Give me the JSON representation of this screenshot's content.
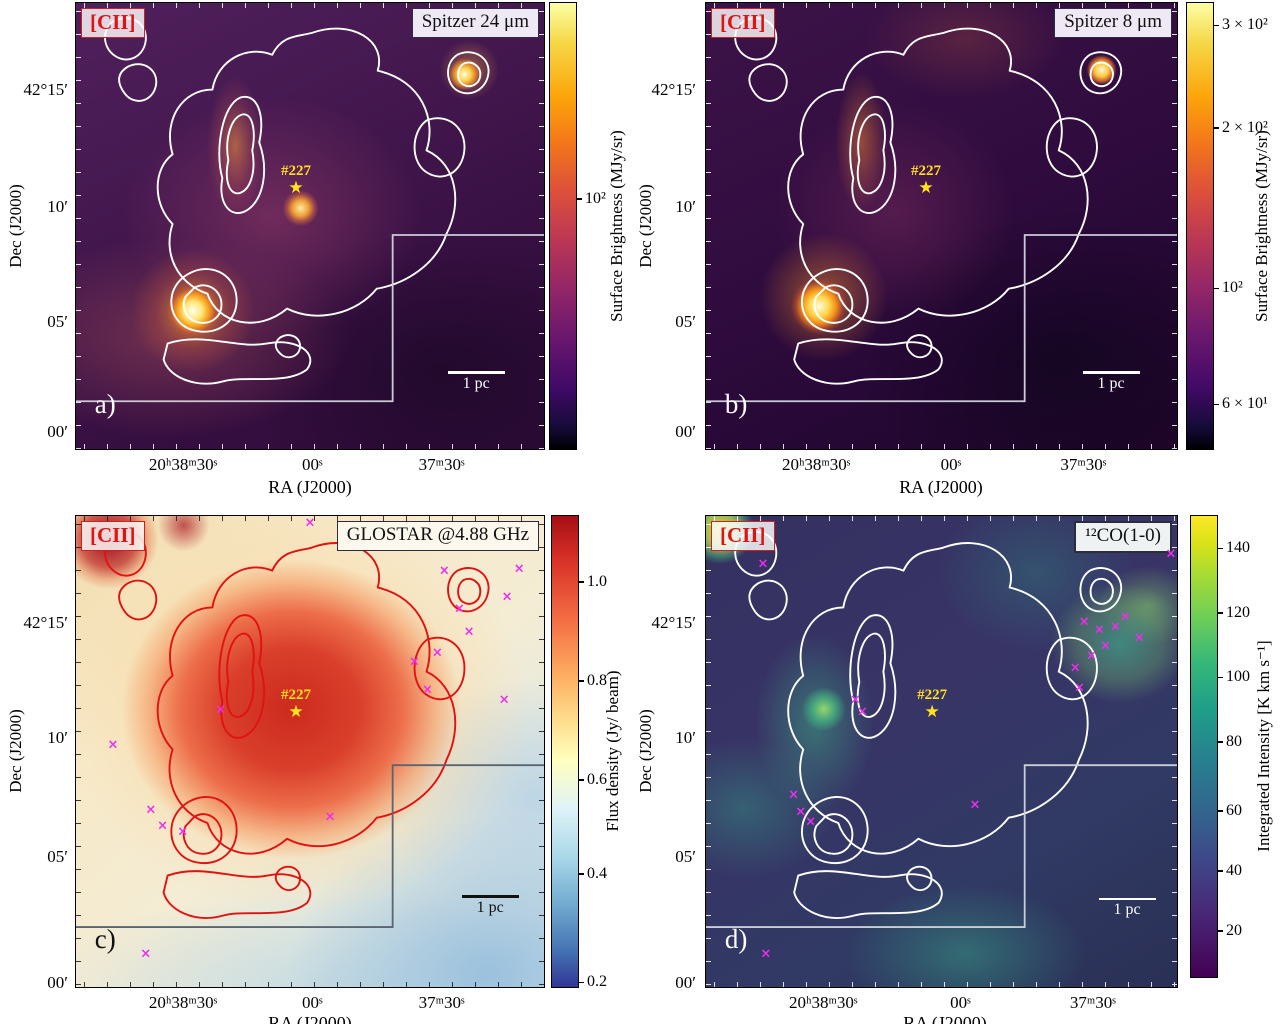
{
  "figure": {
    "shared": {
      "xlabel": "RA (J2000)",
      "ylabel": "Dec (J2000)",
      "x_ticks": [
        "20ʰ38ᵐ30ˢ",
        "00ˢ",
        "37ᵐ30ˢ"
      ],
      "y_ticks": [
        "42°15′",
        "10′",
        "05′",
        "00′"
      ],
      "region_label": "[CII]",
      "source_label": "#227",
      "scalebar_label": "1 pc"
    },
    "colors": {
      "contour_white": "#ffffff",
      "contour_red": "#e01212",
      "marker_magenta": "#ee2dee",
      "star_yellow": "#ffe31e",
      "cii_red": "#dd1414"
    },
    "panels": [
      {
        "letter": "a)",
        "title": "Spitzer 24 μm",
        "colormap": "inferno",
        "colorbar": {
          "label": "Surface Brightness (MJy/sr)",
          "ticks": [
            {
              "label": "10²",
              "pos": 44
            }
          ]
        }
      },
      {
        "letter": "b)",
        "title": "Spitzer 8 μm",
        "colormap": "inferno",
        "colorbar": {
          "label": "Surface Brightness (MJy/sr)",
          "ticks": [
            {
              "label": "3 × 10²",
              "pos": 5
            },
            {
              "label": "2 × 10²",
              "pos": 28
            },
            {
              "label": "10²",
              "pos": 64
            },
            {
              "label": "6 × 10¹",
              "pos": 90
            }
          ]
        }
      },
      {
        "letter": "c)",
        "title": "GLOSTAR @4.88 GHz",
        "colormap": "RdYlBu_r",
        "colorbar": {
          "label": "Flux density (Jy/ beam)",
          "ticks": [
            {
              "label": "1.0",
              "pos": 14
            },
            {
              "label": "0.8",
              "pos": 35
            },
            {
              "label": "0.6",
              "pos": 56
            },
            {
              "label": "0.4",
              "pos": 76
            },
            {
              "label": "0.2",
              "pos": 99
            }
          ]
        },
        "markers": [
          [
            78.7,
            11.6
          ],
          [
            94.7,
            11.2
          ],
          [
            92.1,
            17.1
          ],
          [
            81.9,
            19.7
          ],
          [
            84.0,
            24.7
          ],
          [
            77.2,
            29.0
          ],
          [
            72.3,
            31.1
          ],
          [
            75.1,
            37.0
          ],
          [
            91.5,
            39.1
          ],
          [
            50.0,
            1.5
          ],
          [
            30.9,
            41.2
          ],
          [
            7.9,
            48.6
          ],
          [
            16.0,
            62.4
          ],
          [
            18.5,
            65.8
          ],
          [
            22.8,
            67.0
          ],
          [
            54.3,
            64.0
          ],
          [
            14.9,
            93.0
          ]
        ]
      },
      {
        "letter": "d)",
        "title": "¹²CO(1-0)",
        "colormap": "viridis",
        "colorbar": {
          "label": "Integrated Intensity [K km s⁻¹]",
          "ticks": [
            {
              "label": "140",
              "pos": 7
            },
            {
              "label": "120",
              "pos": 21
            },
            {
              "label": "100",
              "pos": 35
            },
            {
              "label": "80",
              "pos": 49
            },
            {
              "label": "60",
              "pos": 64
            },
            {
              "label": "40",
              "pos": 77
            },
            {
              "label": "20",
              "pos": 90
            }
          ]
        },
        "markers": [
          [
            98.7,
            8.0
          ],
          [
            12.1,
            10.1
          ],
          [
            80.3,
            22.6
          ],
          [
            83.5,
            24.3
          ],
          [
            86.9,
            23.5
          ],
          [
            89.0,
            21.4
          ],
          [
            84.8,
            27.7
          ],
          [
            81.8,
            29.8
          ],
          [
            92.0,
            26.0
          ],
          [
            78.4,
            32.3
          ],
          [
            31.7,
            39.1
          ],
          [
            33.2,
            41.6
          ],
          [
            18.6,
            59.2
          ],
          [
            20.1,
            62.8
          ],
          [
            22.2,
            64.9
          ],
          [
            12.7,
            93.0
          ],
          [
            57.1,
            61.3
          ],
          [
            79.3,
            36.6
          ]
        ]
      }
    ]
  }
}
